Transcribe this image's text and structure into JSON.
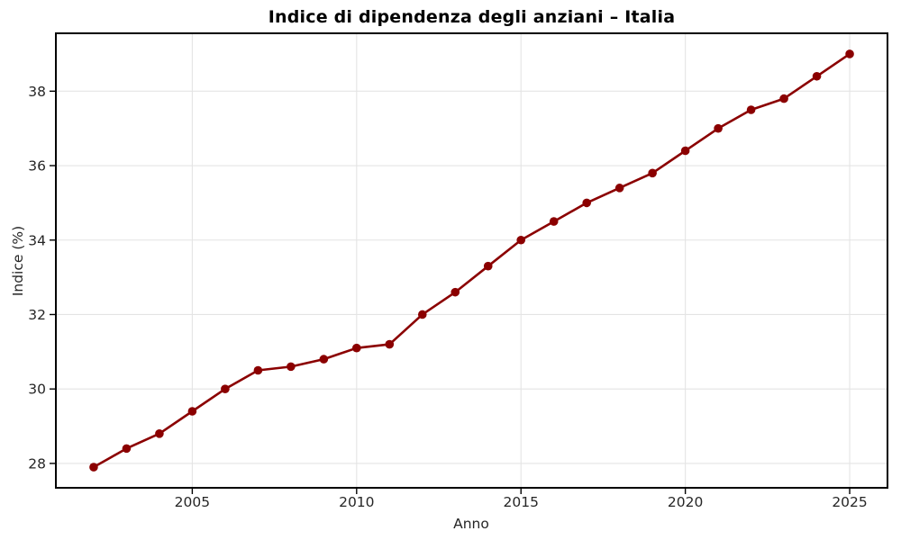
{
  "title": "Indice di dipendenza degli anziani – Italia",
  "chart_data": {
    "type": "line",
    "title": "Indice di dipendenza degli anziani – Italia",
    "xlabel": "Anno",
    "ylabel": "Indice (%)",
    "x": [
      2002,
      2003,
      2004,
      2005,
      2006,
      2007,
      2008,
      2009,
      2010,
      2011,
      2012,
      2013,
      2014,
      2015,
      2016,
      2017,
      2018,
      2019,
      2020,
      2021,
      2022,
      2023,
      2024,
      2025
    ],
    "values": [
      27.9,
      28.4,
      28.8,
      29.4,
      30.0,
      30.5,
      30.6,
      30.8,
      31.1,
      31.2,
      32.0,
      32.6,
      33.3,
      34.0,
      34.5,
      35.0,
      35.4,
      35.8,
      36.4,
      37.0,
      37.5,
      37.8,
      38.4,
      39.0
    ],
    "xlim": [
      2000.85,
      2026.15
    ],
    "ylim": [
      27.345,
      39.555
    ],
    "xticks": [
      2005,
      2010,
      2015,
      2020,
      2025
    ],
    "yticks": [
      28,
      30,
      32,
      34,
      36,
      38
    ],
    "grid": true,
    "legend": false,
    "marker": "o",
    "colors": {
      "line": "#8B0000",
      "grid": "#e4e4e4",
      "spine": "#000000",
      "text": "#262626",
      "background": "#ffffff"
    }
  }
}
